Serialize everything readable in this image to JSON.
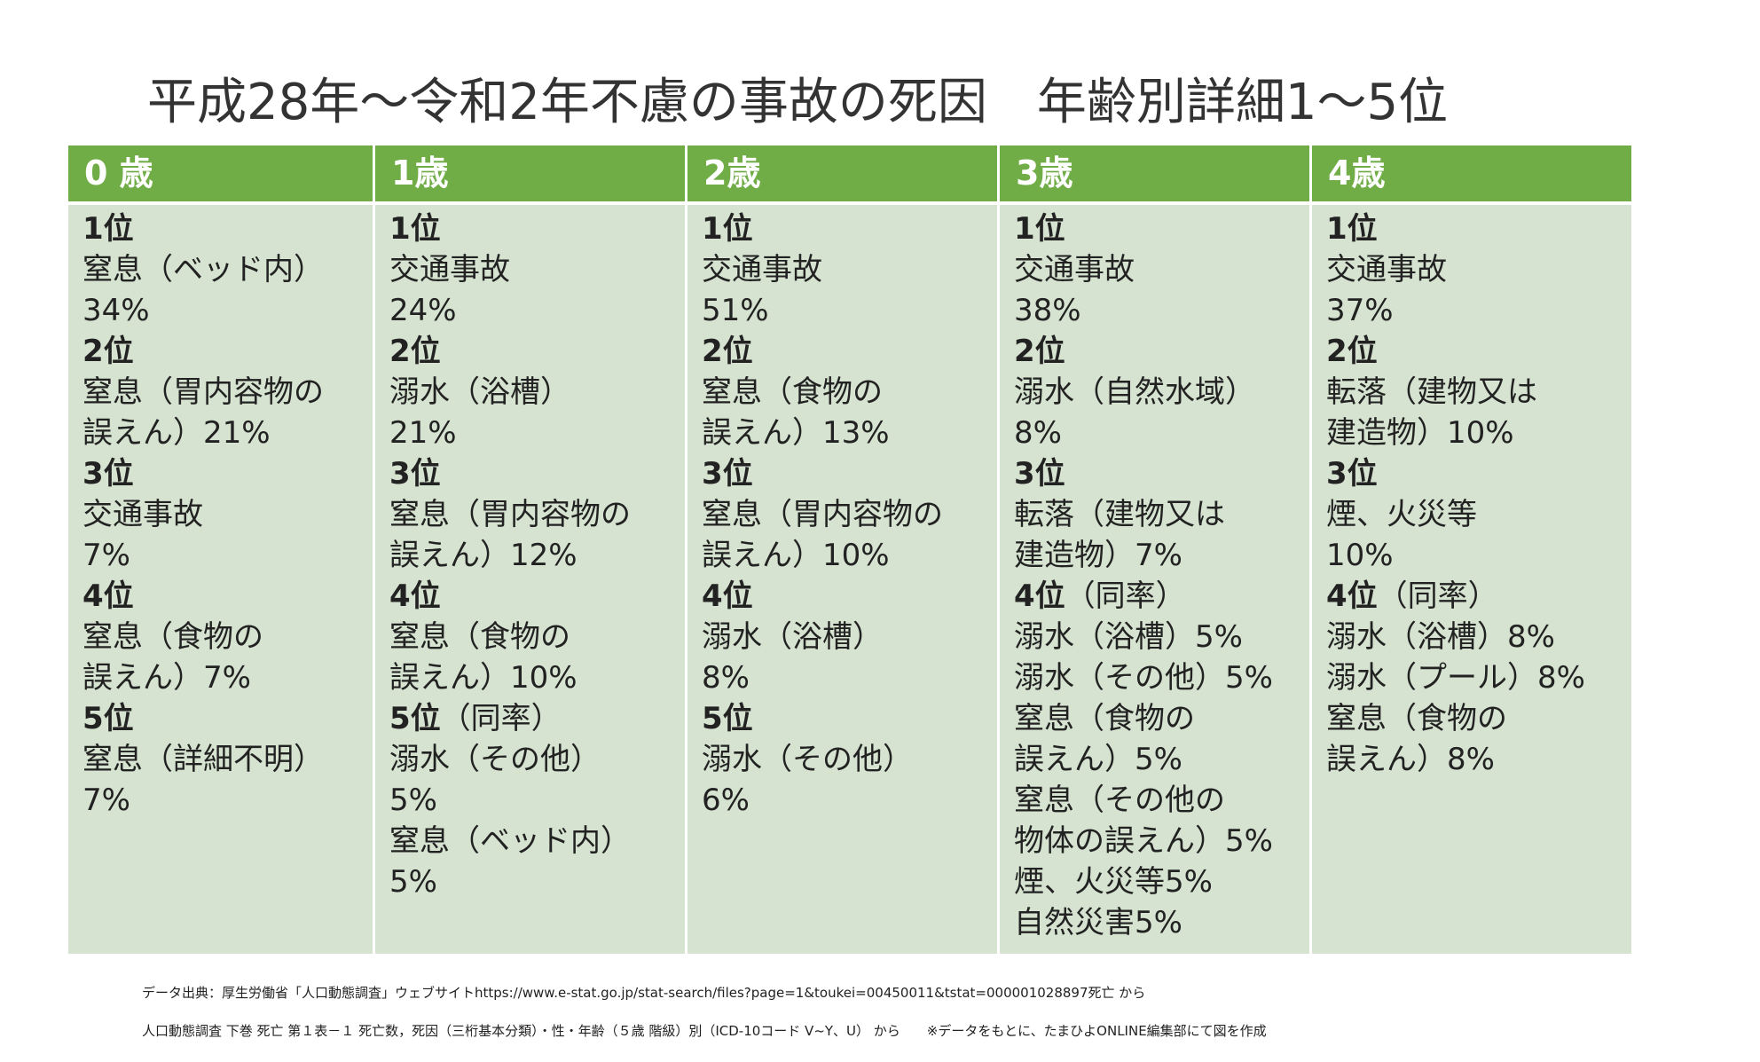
{
  "title": "平成28年～令和2年不慮の事故の死因　年齢別詳細1～5位",
  "columns": [
    {
      "header": "0 歳",
      "entries": [
        {
          "rank": "1位",
          "note": "",
          "lines": [
            "窒息（ベッド内）",
            "34%"
          ]
        },
        {
          "rank": "2位",
          "note": "",
          "lines": [
            "窒息（胃内容物の",
            "誤えん）21%"
          ]
        },
        {
          "rank": "3位",
          "note": "",
          "lines": [
            "交通事故",
            "7%"
          ]
        },
        {
          "rank": "4位",
          "note": "",
          "lines": [
            "窒息（食物の",
            "誤えん）7%"
          ]
        },
        {
          "rank": "5位",
          "note": "",
          "lines": [
            "窒息（詳細不明）",
            "7%"
          ]
        }
      ]
    },
    {
      "header": "1歳",
      "entries": [
        {
          "rank": "1位",
          "note": "",
          "lines": [
            "交通事故",
            "24%"
          ]
        },
        {
          "rank": "2位",
          "note": "",
          "lines": [
            "溺水（浴槽）",
            "21%"
          ]
        },
        {
          "rank": "3位",
          "note": "",
          "lines": [
            "窒息（胃内容物の",
            "誤えん）12%"
          ]
        },
        {
          "rank": "4位",
          "note": "",
          "lines": [
            "窒息（食物の",
            "誤えん）10%"
          ]
        },
        {
          "rank": "5位",
          "note": "（同率）",
          "lines": [
            "溺水（その他）",
            "5%",
            "窒息（ベッド内）",
            "5%"
          ]
        }
      ]
    },
    {
      "header": "2歳",
      "entries": [
        {
          "rank": "1位",
          "note": "",
          "lines": [
            "交通事故",
            "51%"
          ]
        },
        {
          "rank": "2位",
          "note": "",
          "lines": [
            "窒息（食物の",
            "誤えん）13%"
          ]
        },
        {
          "rank": "3位",
          "note": "",
          "lines": [
            "窒息（胃内容物の",
            "誤えん）10%"
          ]
        },
        {
          "rank": "4位",
          "note": "",
          "lines": [
            "溺水（浴槽）",
            "8%"
          ]
        },
        {
          "rank": "5位",
          "note": "",
          "lines": [
            "溺水（その他）",
            "6%"
          ]
        }
      ]
    },
    {
      "header": "3歳",
      "entries": [
        {
          "rank": "1位",
          "note": "",
          "lines": [
            "交通事故",
            "38%"
          ]
        },
        {
          "rank": "2位",
          "note": "",
          "lines": [
            "溺水（自然水域）",
            "8%"
          ]
        },
        {
          "rank": "3位",
          "note": "",
          "lines": [
            "転落（建物又は",
            "建造物）7%"
          ]
        },
        {
          "rank": "4位",
          "note": "（同率）",
          "lines": [
            "溺水（浴槽）5%",
            "溺水（その他）5%",
            "窒息（食物の",
            "誤えん）5%",
            "窒息（その他の",
            "物体の誤えん）5%",
            "煙、火災等5%",
            "自然災害5%"
          ]
        }
      ]
    },
    {
      "header": "4歳",
      "entries": [
        {
          "rank": "1位",
          "note": "",
          "lines": [
            "交通事故",
            "37%"
          ]
        },
        {
          "rank": "2位",
          "note": "",
          "lines": [
            "転落（建物又は",
            "建造物）10%"
          ]
        },
        {
          "rank": "3位",
          "note": "",
          "lines": [
            "煙、火災等",
            "10%"
          ]
        },
        {
          "rank": "4位",
          "note": "（同率）",
          "lines": [
            "溺水（浴槽）8%",
            "溺水（プール）8%",
            "窒息（食物の",
            "誤えん）8%"
          ]
        }
      ]
    }
  ],
  "footer": {
    "line1": "データ出典：厚生労働省「人口動態調査」ウェブサイトhttps://www.e-stat.go.jp/stat-search/files?page=1&toukei=00450011&tstat=000001028897死亡 から",
    "line2": "人口動態調査 下巻 死亡 第１表－１ 死亡数，死因（三桁基本分類）・性・年齢（５歳 階級）別（ICD-10コード V~Y、U） から　　※データをもとに、たまひよONLINE編集部にて図を作成"
  }
}
